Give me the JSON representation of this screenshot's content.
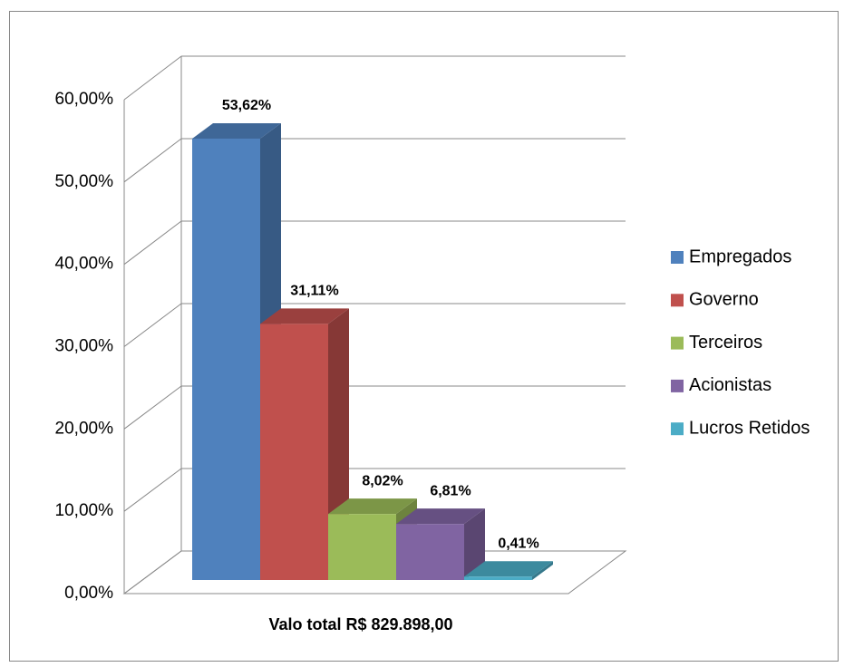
{
  "chart_data": {
    "type": "bar3d",
    "categories": [
      "Valo total R$ 829.898,00"
    ],
    "series": [
      {
        "name": "Empregados",
        "color": "#4f81bd",
        "values": [
          53.62
        ],
        "value_labels": [
          "53,62%"
        ]
      },
      {
        "name": "Governo",
        "color": "#c0504d",
        "values": [
          31.11
        ],
        "value_labels": [
          "31,11%"
        ]
      },
      {
        "name": "Terceiros",
        "color": "#9bbb59",
        "values": [
          8.02
        ],
        "value_labels": [
          "8,02%"
        ]
      },
      {
        "name": "Acionistas",
        "color": "#8064a2",
        "values": [
          6.81
        ],
        "value_labels": [
          "6,81%"
        ]
      },
      {
        "name": "Lucros Retidos",
        "color": "#4bacc6",
        "values": [
          0.41
        ],
        "value_labels": [
          "0,41%"
        ]
      }
    ],
    "ylim": [
      0,
      60
    ],
    "yticks": [
      {
        "value": 0,
        "label": "0,00%"
      },
      {
        "value": 10,
        "label": "10,00%"
      },
      {
        "value": 20,
        "label": "20,00%"
      },
      {
        "value": 30,
        "label": "30,00%"
      },
      {
        "value": 40,
        "label": "40,00%"
      },
      {
        "value": 50,
        "label": "50,00%"
      },
      {
        "value": 60,
        "label": "60,00%"
      }
    ],
    "grid": true,
    "legend": "right"
  }
}
